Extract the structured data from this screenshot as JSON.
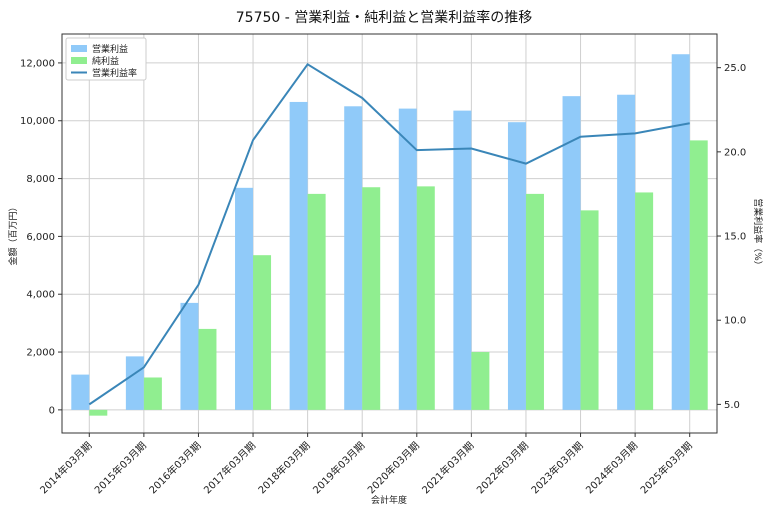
{
  "chart_data": {
    "type": "bar",
    "title": "75750 - 営業利益・純利益と営業利益率の推移",
    "xlabel": "会計年度",
    "ylabel": "金額（百万円）",
    "y2label": "営業利益率（%）",
    "categories": [
      "2014年03月期",
      "2015年03月期",
      "2016年03月期",
      "2017年03月期",
      "2018年03月期",
      "2019年03月期",
      "2020年03月期",
      "2021年03月期",
      "2022年03月期",
      "2023年03月期",
      "2024年03月期",
      "2025年03月期"
    ],
    "series": [
      {
        "name": "営業利益",
        "kind": "bar",
        "axis": "left",
        "color": "#90CAF9",
        "values": [
          1220,
          1850,
          3700,
          7680,
          10650,
          10500,
          10420,
          10350,
          9950,
          10850,
          10900,
          12300
        ]
      },
      {
        "name": "純利益",
        "kind": "bar",
        "axis": "left",
        "color": "#90EE90",
        "values": [
          -200,
          1120,
          2800,
          5350,
          7470,
          7700,
          7730,
          2000,
          7470,
          6900,
          7520,
          9320
        ]
      },
      {
        "name": "営業利益率",
        "kind": "line",
        "axis": "right",
        "color": "#3A86B8",
        "values": [
          5.0,
          7.2,
          12.1,
          20.7,
          25.2,
          23.2,
          20.1,
          20.2,
          19.3,
          20.9,
          21.1,
          21.7
        ]
      }
    ],
    "ylim": [
      -800,
      13000
    ],
    "y2lim": [
      3.3,
      27.0
    ],
    "yticks": [
      0,
      2000,
      4000,
      6000,
      8000,
      10000,
      12000
    ],
    "yticklabels": [
      "0",
      "2,000",
      "4,000",
      "6,000",
      "8,000",
      "10,000",
      "12,000"
    ],
    "y2ticks": [
      5.0,
      10.0,
      15.0,
      20.0,
      25.0
    ],
    "y2ticklabels": [
      "5.0",
      "10.0",
      "15.0",
      "20.0",
      "25.0"
    ],
    "grid": true,
    "legend_position": "top-left"
  }
}
